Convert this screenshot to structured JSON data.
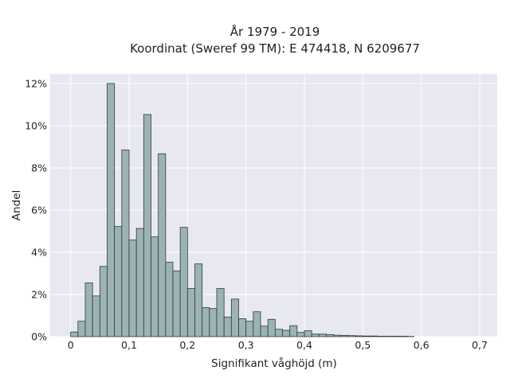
{
  "chart_data": {
    "type": "bar",
    "title": "År 1979 - 2019",
    "subtitle": "Koordinat (Sweref 99 TM): E 474418, N 6209677",
    "xlabel": "Signifikant våghöjd (m)",
    "ylabel": "Andel",
    "xlim": [
      -0.035,
      0.73
    ],
    "ylim": [
      0,
      0.1245
    ],
    "xticks": [
      0,
      0.1,
      0.2,
      0.3,
      0.4,
      0.5,
      0.6,
      0.7
    ],
    "xtick_labels": [
      "0",
      "0,1",
      "0,2",
      "0,3",
      "0,4",
      "0,5",
      "0,6",
      "0,7"
    ],
    "yticks": [
      0,
      0.02,
      0.04,
      0.06,
      0.08,
      0.1,
      0.12
    ],
    "ytick_labels": [
      "0%",
      "2%",
      "4%",
      "6%",
      "8%",
      "10%",
      "12%"
    ],
    "bin_width": 0.0125,
    "bin_start": 0,
    "values": [
      0.0022,
      0.0073,
      0.0255,
      0.0193,
      0.0333,
      0.12,
      0.0522,
      0.0885,
      0.0458,
      0.0513,
      0.1053,
      0.0473,
      0.0867,
      0.0353,
      0.0312,
      0.0518,
      0.0228,
      0.0345,
      0.0138,
      0.0133,
      0.0228,
      0.0093,
      0.0178,
      0.0085,
      0.0073,
      0.0118,
      0.005,
      0.0082,
      0.0035,
      0.003,
      0.0052,
      0.002,
      0.0028,
      0.0012,
      0.0012,
      0.001,
      0.0007,
      0.0006,
      0.0005,
      0.0004,
      0.0003,
      0.0003,
      0.0002,
      0.0002,
      0.0002,
      0.0002,
      0.0001
    ],
    "grid": true,
    "colors": {
      "bar_fill": "#9bb3b3",
      "bar_edge": "#2f3b3b",
      "plot_background": "#e8e8f0",
      "grid": "#ffffff"
    }
  }
}
